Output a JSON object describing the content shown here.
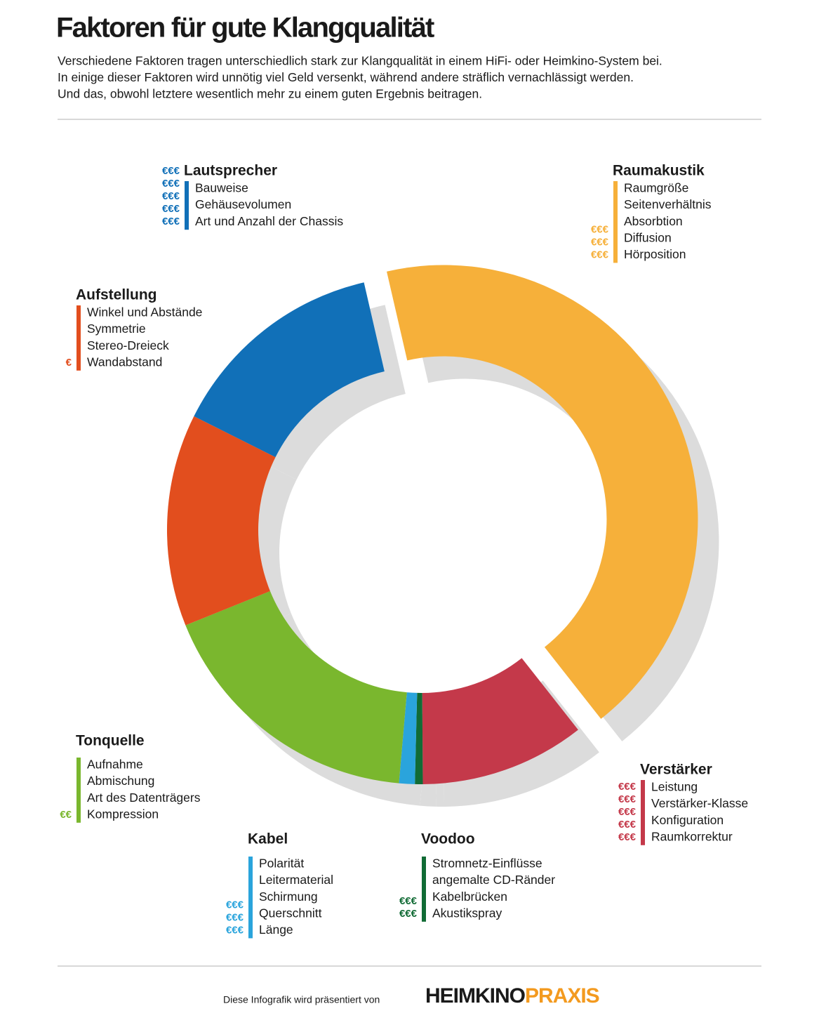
{
  "chart_data": {
    "type": "donut",
    "title": "Faktoren für gute Klangqualität",
    "subtitle": [
      "Verschiedene Faktoren tragen unterschiedlich stark zur Klangqualität in einem HiFi- oder Heimkino-System bei.",
      "In einige dieser Faktoren wird unnötig viel Geld versenkt, während andere sträflich vernachlässigt werden.",
      "Und das, obwohl letztere wesentlich mehr zu einem guten Ergebnis beitragen."
    ],
    "categories": [
      "Raumakustik",
      "Verstärker",
      "Voodoo",
      "Kabel",
      "Tonquelle",
      "Aufstellung",
      "Lautsprecher"
    ],
    "values": [
      43,
      10.5,
      0.5,
      1,
      17.5,
      13.5,
      14
    ],
    "colors": [
      "#f6b03a",
      "#c4394a",
      "#116b35",
      "#2aa4dc",
      "#7ab72e",
      "#e24e1e",
      "#1170b8"
    ],
    "exploded": "Raumakustik",
    "groups": [
      {
        "items": [
          "Raumgröße",
          "Seitenverhältnis",
          "Absorbtion",
          "Diffusion",
          "Hörposition"
        ],
        "cost": [
          "€€€",
          "€€€",
          "€€€"
        ]
      },
      {
        "items": [
          "Leistung",
          "Verstärker-Klasse",
          "Konfiguration",
          "Raumkorrektur"
        ],
        "cost": [
          "€€€",
          "€€€",
          "€€€",
          "€€€",
          "€€€"
        ]
      },
      {
        "items": [
          "Stromnetz-Einflüsse",
          "angemalte CD-Ränder",
          "Kabelbrücken",
          "Akustikspray"
        ],
        "cost": [
          "€€€",
          "€€€"
        ]
      },
      {
        "items": [
          "Polarität",
          "Leitermaterial",
          "Schirmung",
          "Querschnitt",
          "Länge"
        ],
        "cost": [
          "€€€",
          "€€€",
          "€€€"
        ]
      },
      {
        "items": [
          "Aufnahme",
          "Abmischung",
          "Art des Datenträgers",
          "Kompression"
        ],
        "cost": [
          "€€"
        ]
      },
      {
        "items": [
          "Winkel und Abstände",
          "Symmetrie",
          "Stereo-Dreieck",
          "Wandabstand"
        ],
        "cost": [
          "€"
        ]
      },
      {
        "items": [
          "Bauweise",
          "Gehäusevolumen",
          "Art und Anzahl der Chassis"
        ],
        "cost": [
          "€€€",
          "€€€",
          "€€€",
          "€€€",
          "€€€"
        ]
      }
    ]
  },
  "footer": {
    "text": "Diese Infografik wird präsentiert von",
    "logo": [
      "HEIMKINO",
      "PRAXIS"
    ]
  }
}
